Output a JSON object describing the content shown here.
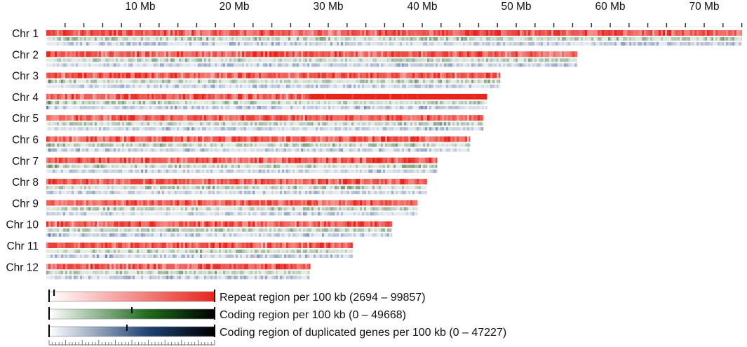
{
  "chart_data": {
    "type": "heatmap",
    "axis": {
      "unit": "Mb",
      "range": [
        0,
        74
      ],
      "tick_labels": [
        {
          "value": 10,
          "label": "10 Mb"
        },
        {
          "value": 20,
          "label": "20 Mb"
        },
        {
          "value": 30,
          "label": "30 Mb"
        },
        {
          "value": 40,
          "label": "40 Mb"
        },
        {
          "value": 50,
          "label": "50 Mb"
        },
        {
          "value": 60,
          "label": "60 Mb"
        },
        {
          "value": 70,
          "label": "70 Mb"
        }
      ]
    },
    "chromosomes": [
      {
        "label": "Chr 1",
        "length_mb": 74.0
      },
      {
        "label": "Chr 2",
        "length_mb": 56.5
      },
      {
        "label": "Chr 3",
        "length_mb": 48.3
      },
      {
        "label": "Chr 4",
        "length_mb": 46.9
      },
      {
        "label": "Chr 5",
        "length_mb": 46.5
      },
      {
        "label": "Chr 6",
        "length_mb": 45.1
      },
      {
        "label": "Chr 7",
        "length_mb": 41.6
      },
      {
        "label": "Chr 8",
        "length_mb": 40.5
      },
      {
        "label": "Chr 9",
        "length_mb": 39.5
      },
      {
        "label": "Chr 10",
        "length_mb": 36.8
      },
      {
        "label": "Chr 11",
        "length_mb": 32.6
      },
      {
        "label": "Chr 12",
        "length_mb": 28.1
      }
    ],
    "tracks": [
      {
        "label": "Repeat region per 100 kb (2694 – 99857)",
        "color_low": "#ffffff",
        "color_high": "#e8241c",
        "min": 2694,
        "max": 99857,
        "mark": 0.03
      },
      {
        "label": "Coding region per 100 kb (0 – 49668)",
        "color_low": "#ffffff",
        "color_mid": "#1f6b1f",
        "color_high": "#000000",
        "min": 0,
        "max": 49668,
        "mark": 0.5
      },
      {
        "label": "Coding region of duplicated genes per 100 kb (0 – 47227)",
        "color_low": "#ffffff",
        "color_mid": "#1e4273",
        "color_high": "#000000",
        "min": 0,
        "max": 47227,
        "mark": 0.47
      }
    ]
  }
}
